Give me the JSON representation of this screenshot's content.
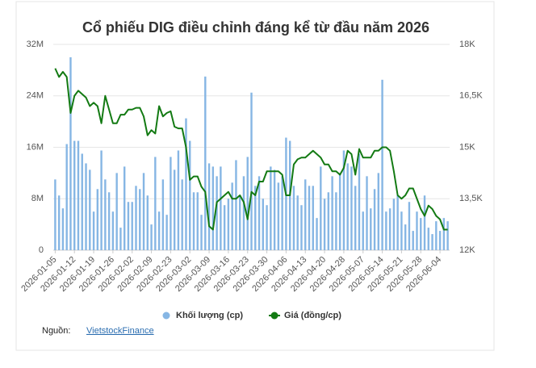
{
  "chart_data": {
    "type": "combo",
    "title": "Cổ phiếu DIG điều chỉnh đáng kể từ đầu năm 2026",
    "categories": [
      "2026-01-05",
      null,
      null,
      null,
      null,
      "2026-01-12",
      null,
      null,
      null,
      null,
      "2026-01-19",
      null,
      null,
      null,
      null,
      "2026-01-26",
      null,
      null,
      null,
      null,
      "2026-02-02",
      null,
      null,
      null,
      null,
      "2026-02-09",
      null,
      null,
      null,
      null,
      "2026-02-23",
      null,
      null,
      null,
      null,
      "2026-03-02",
      null,
      null,
      null,
      null,
      "2026-03-09",
      null,
      null,
      null,
      null,
      "2026-03-16",
      null,
      null,
      null,
      null,
      "2026-03-23",
      null,
      null,
      null,
      null,
      "2026-03-30",
      null,
      null,
      null,
      null,
      "2026-04-06",
      null,
      null,
      null,
      null,
      "2026-04-13",
      null,
      null,
      null,
      null,
      "2026-04-20",
      null,
      null,
      null,
      null,
      "2026-04-28",
      null,
      null,
      null,
      null,
      "2026-05-07",
      null,
      null,
      null,
      null,
      "2026-05-14",
      null,
      null,
      null,
      null,
      "2026-05-21",
      null,
      null,
      null,
      null,
      "2026-05-28",
      null,
      null,
      null,
      null,
      "2026-06-04",
      null,
      null
    ],
    "series": [
      {
        "name": "Khối lượng (cp)",
        "type": "bar",
        "color": "#86b6e4",
        "axis": "y",
        "values": [
          11000000,
          8500000,
          6500000,
          16500000,
          30000000,
          17000000,
          17000000,
          15000000,
          13500000,
          12500000,
          6000000,
          9500000,
          15500000,
          11000000,
          9000000,
          6000000,
          12000000,
          3500000,
          13000000,
          7500000,
          7500000,
          10000000,
          9500000,
          12000000,
          8500000,
          4000000,
          14500000,
          6000000,
          11000000,
          5500000,
          14500000,
          12500000,
          15500000,
          11000000,
          20500000,
          17000000,
          9000000,
          9000000,
          5500000,
          27000000,
          13500000,
          13000000,
          11500000,
          13000000,
          7000000,
          8000000,
          10500000,
          14000000,
          8500000,
          11500000,
          14500000,
          24500000,
          10000000,
          11500000,
          8000000,
          7000000,
          13000000,
          12500000,
          10500000,
          11500000,
          17500000,
          17000000,
          10000000,
          8500000,
          7000000,
          11000000,
          10000000,
          10000000,
          5000000,
          13000000,
          8000000,
          9000000,
          11500000,
          9000000,
          12000000,
          15500000,
          13500000,
          13000000,
          10000000,
          15000000,
          6000000,
          11500000,
          6500000,
          9500000,
          12000000,
          26500000,
          6000000,
          6500000,
          8000000,
          8500000,
          6000000,
          4000000,
          7500000,
          3000000,
          6000000,
          5000000,
          8500000,
          3500000,
          2500000,
          4500000,
          3000000,
          5000000,
          4500000
        ]
      },
      {
        "name": "Giá (đồng/cp)",
        "type": "line",
        "color": "#137a13",
        "axis": "y2",
        "values": [
          17300,
          17050,
          17200,
          17050,
          16000,
          16500,
          16650,
          16550,
          16450,
          16200,
          16300,
          16200,
          15700,
          16500,
          16100,
          15700,
          15700,
          15950,
          15950,
          16100,
          16100,
          16150,
          16150,
          15900,
          15350,
          15500,
          15400,
          16200,
          15900,
          16000,
          16050,
          15600,
          15550,
          15550,
          15000,
          14050,
          14150,
          14150,
          13850,
          13700,
          12700,
          12600,
          13400,
          13500,
          13600,
          13700,
          13500,
          13500,
          13600,
          13400,
          12900,
          13700,
          13600,
          14000,
          14000,
          14300,
          14300,
          14300,
          14300,
          14200,
          13600,
          13600,
          14500,
          14650,
          14700,
          14700,
          14800,
          14900,
          14800,
          14700,
          14500,
          14500,
          14300,
          14300,
          14200,
          14400,
          14900,
          14800,
          14200,
          14950,
          14700,
          14700,
          14700,
          14900,
          14900,
          15000,
          15000,
          14900,
          14300,
          13600,
          13500,
          13600,
          13800,
          13800,
          13500,
          13200,
          13000,
          13300,
          13200,
          13000,
          12900,
          12600,
          12600
        ]
      }
    ],
    "ylim": [
      0,
      32000000
    ],
    "yticks": [
      0,
      {
        "value": 8000000,
        "label": "8M"
      },
      {
        "value": 16000000,
        "label": "16M"
      },
      {
        "value": 24000000,
        "label": "24M"
      },
      {
        "value": 32000000,
        "label": "32M"
      }
    ],
    "y2lim": [
      12000,
      18000
    ],
    "y2ticks": [
      {
        "value": 12000,
        "label": "12K"
      },
      {
        "value": 13500,
        "label": "13,5K"
      },
      {
        "value": 15000,
        "label": "15K"
      },
      {
        "value": 16500,
        "label": "16,5K"
      },
      {
        "value": 18000,
        "label": "18K"
      }
    ],
    "grid": true,
    "source_label": "Nguồn:",
    "source_link": "VietstockFinance"
  }
}
